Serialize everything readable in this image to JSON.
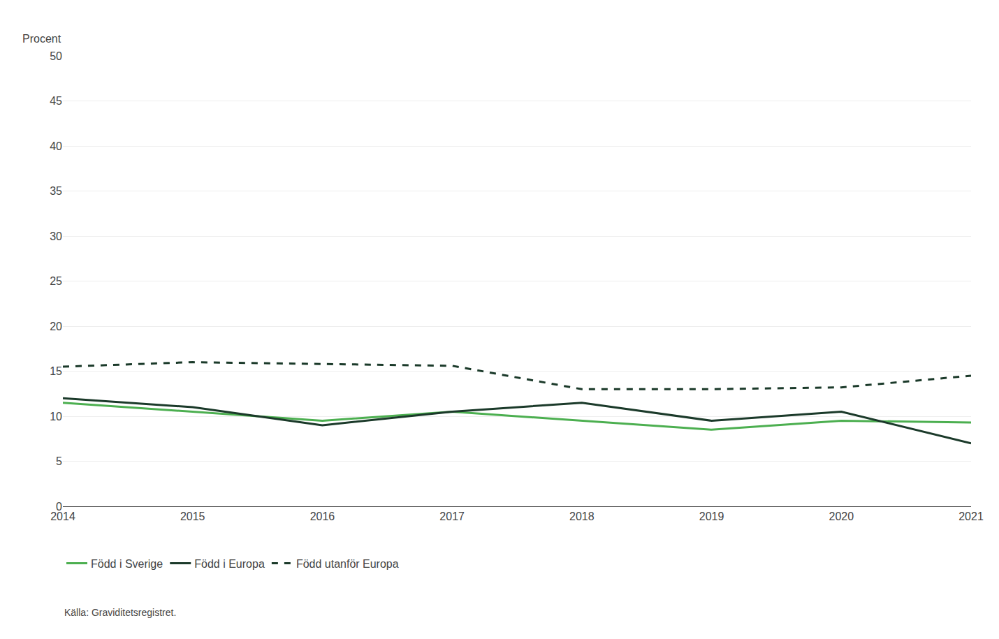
{
  "chart_data": {
    "type": "line",
    "ylabel": "Procent",
    "annotations": [
      "Källa: Graviditetsregistret."
    ],
    "x": [
      2014,
      2015,
      2016,
      2017,
      2018,
      2019,
      2020,
      2021
    ],
    "series": [
      {
        "name": "Född i Sverige",
        "color": "#4caf50",
        "line_style": "solid",
        "values": [
          11.5,
          10.5,
          9.5,
          10.5,
          9.5,
          8.5,
          9.5,
          9.3
        ]
      },
      {
        "name": "Född i Europa",
        "color": "#1b3a2a",
        "line_style": "solid",
        "values": [
          12.0,
          11.0,
          9.0,
          10.5,
          11.5,
          9.5,
          10.5,
          7.0
        ]
      },
      {
        "name": "Född utanför Europa",
        "color": "#1b3a2a",
        "line_style": "dashed",
        "values": [
          15.5,
          16.0,
          15.8,
          15.6,
          13.0,
          13.0,
          13.2,
          14.5
        ]
      }
    ],
    "xlim": [
      2014,
      2021
    ],
    "xticks": [
      2014,
      2015,
      2016,
      2017,
      2018,
      2019,
      2020,
      2021
    ],
    "ylim": [
      0,
      50
    ],
    "yticks": [
      0,
      5,
      10,
      15,
      20,
      25,
      30,
      35,
      40,
      45,
      50
    ],
    "grid": true,
    "legend": "bottom"
  }
}
